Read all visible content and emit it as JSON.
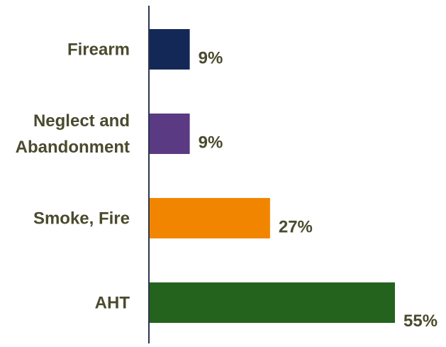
{
  "chart_data": {
    "type": "bar",
    "orientation": "horizontal",
    "categories": [
      "Firearm",
      "Neglect and Abandonment",
      "Smoke, Fire",
      "AHT"
    ],
    "category_lines": [
      [
        "Firearm"
      ],
      [
        "Neglect and",
        "Abandonment"
      ],
      [
        "Smoke, Fire"
      ],
      [
        "AHT"
      ]
    ],
    "values": [
      9,
      9,
      27,
      55
    ],
    "value_labels": [
      "9%",
      "9%",
      "27%",
      "55%"
    ],
    "bar_colors": [
      "#142857",
      "#5a3a82",
      "#f28500",
      "#23631e"
    ],
    "xlim": [
      0,
      55
    ],
    "unit": "%",
    "grid": false,
    "legend": "none",
    "title": "",
    "xlabel": "",
    "ylabel": "",
    "text_color": "#4a4a2e",
    "axis_color": "#2a3550"
  }
}
